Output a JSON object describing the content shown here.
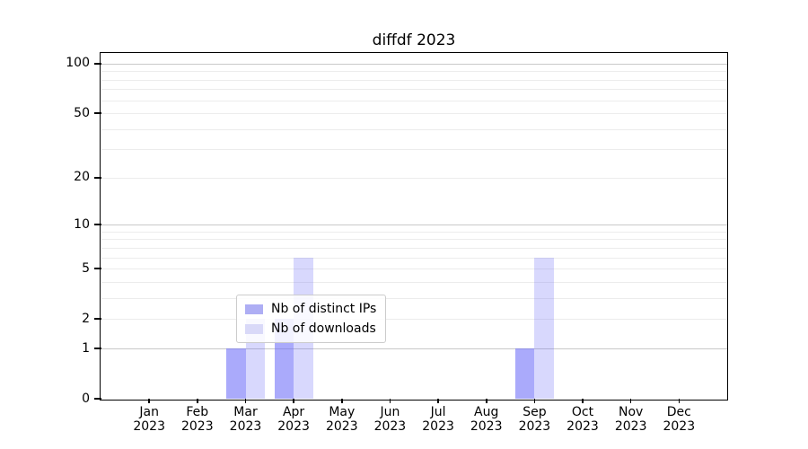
{
  "chart_data": {
    "type": "bar",
    "title": "diffdf 2023",
    "categories": [
      "Jan",
      "Feb",
      "Mar",
      "Apr",
      "May",
      "Jun",
      "Jul",
      "Aug",
      "Sep",
      "Oct",
      "Nov",
      "Dec"
    ],
    "x_year_label": "2023",
    "series": [
      {
        "name": "Nb of distinct IPs",
        "swatch_color": "#aeaef4",
        "bar_color": "rgba(100,100,247,0.55)",
        "values": [
          0,
          0,
          1,
          2,
          0,
          0,
          0,
          0,
          1,
          0,
          0,
          0
        ]
      },
      {
        "name": "Nb of downloads",
        "swatch_color": "#d9d9f8",
        "bar_color": "rgba(100,100,247,0.25)",
        "values": [
          0,
          0,
          2,
          6,
          0,
          0,
          0,
          0,
          6,
          0,
          0,
          0
        ]
      }
    ],
    "yscale": "log10(1+y)",
    "ylim": [
      0,
      116
    ],
    "yticks": [
      0,
      1,
      2,
      5,
      10,
      20,
      50,
      100
    ],
    "major_gridlines": [
      1,
      10,
      100
    ],
    "minor_gridlines": [
      2,
      3,
      4,
      5,
      6,
      7,
      8,
      9,
      20,
      30,
      40,
      50,
      60,
      70,
      80,
      90
    ],
    "grid_major_color": "#c9c9c9",
    "grid_minor_color": "#ececec",
    "legend_position": "lower center",
    "grid": "horizontal only"
  }
}
